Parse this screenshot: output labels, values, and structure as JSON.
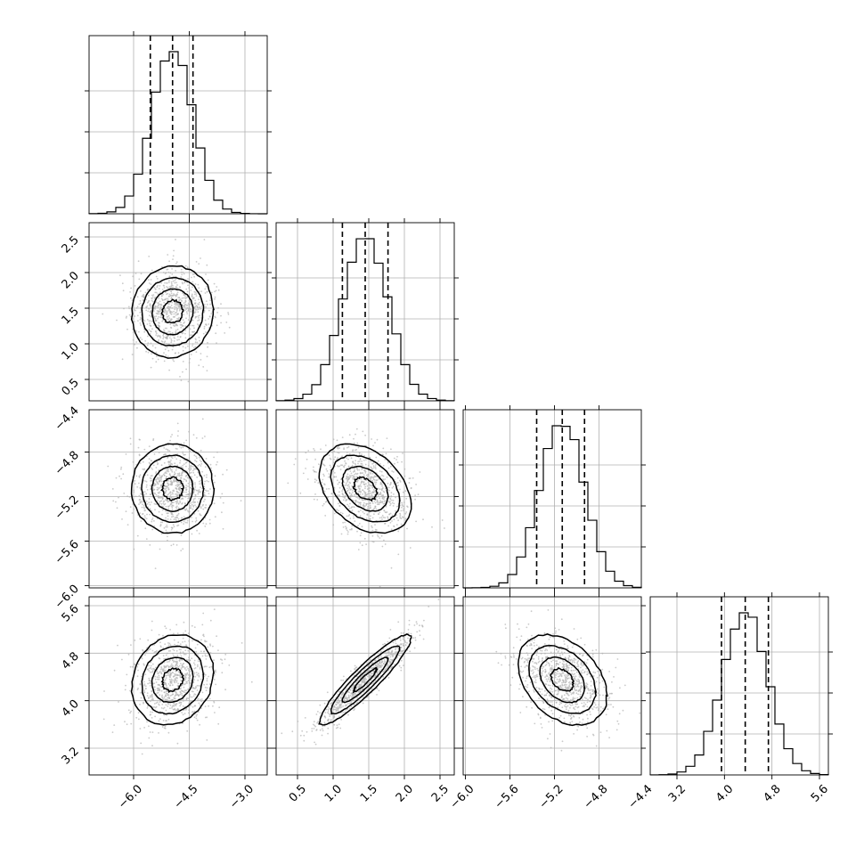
{
  "chart_data": {
    "type": "corner",
    "parameters": [
      {
        "index": 0,
        "range": [
          -7.2,
          -2.4
        ],
        "ticks": [
          -6.0,
          -4.5,
          -3.0
        ],
        "tick_labels": [
          "−6.0",
          "−4.5",
          "−3.0"
        ],
        "quantiles": [
          -5.55,
          -4.95,
          -4.4
        ],
        "mean": -4.95,
        "sd": 0.55
      },
      {
        "index": 1,
        "range": [
          0.2,
          2.7
        ],
        "ticks": [
          0.5,
          1.0,
          1.5,
          2.0,
          2.5
        ],
        "tick_labels": [
          "0.5",
          "1.0",
          "1.5",
          "2.0",
          "2.5"
        ],
        "quantiles": [
          1.13,
          1.45,
          1.77
        ],
        "mean": 1.45,
        "sd": 0.32
      },
      {
        "index": 2,
        "range": [
          -6.02,
          -4.42
        ],
        "ticks": [
          -6.0,
          -5.6,
          -5.2,
          -4.8,
          -4.4
        ],
        "tick_labels": [
          "−6.0",
          "−5.6",
          "−5.2",
          "−4.8",
          "−4.4"
        ],
        "quantiles": [
          -5.36,
          -5.13,
          -4.93
        ],
        "mean": -5.13,
        "sd": 0.2
      },
      {
        "index": 3,
        "range": [
          2.75,
          5.75
        ],
        "ticks": [
          3.2,
          4.0,
          4.8,
          5.6
        ],
        "tick_labels": [
          "3.2",
          "4.0",
          "4.8",
          "5.6"
        ],
        "quantiles": [
          3.95,
          4.35,
          4.74
        ],
        "mean": 4.35,
        "sd": 0.38
      }
    ],
    "correlations": [
      [
        0,
        1,
        0.05
      ],
      [
        0,
        2,
        0.0
      ],
      [
        0,
        3,
        0.15
      ],
      [
        1,
        2,
        -0.35
      ],
      [
        1,
        3,
        0.92
      ],
      [
        2,
        3,
        -0.35
      ]
    ],
    "histogram_bins": 20,
    "contour_levels": 4,
    "quantile_line_style": "dashed",
    "grid": true,
    "colors": {
      "line": "#000000",
      "points": "#b3b3b3",
      "grid": "#b0b0b0",
      "background": "#ffffff"
    }
  }
}
